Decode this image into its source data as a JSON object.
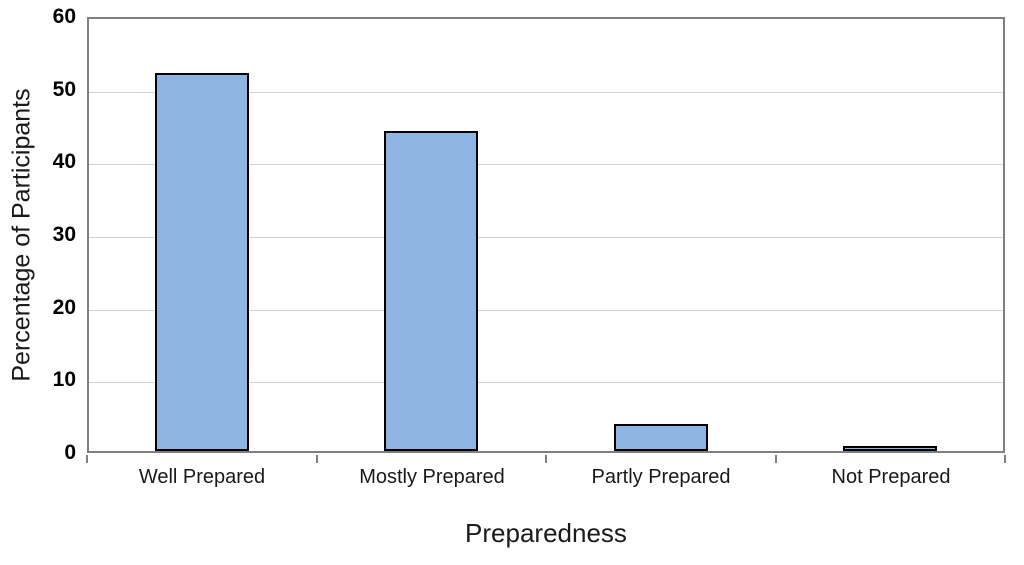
{
  "chart_data": {
    "type": "bar",
    "categories": [
      "Well Prepared",
      "Mostly Prepared",
      "Partly Prepared",
      "Not Prepared"
    ],
    "values": [
      52,
      44,
      3.7,
      0.5
    ],
    "title": "",
    "xlabel": "Preparedness",
    "ylabel": "Percentage of Participants",
    "ylim": [
      0,
      60
    ],
    "yticks": [
      0,
      10,
      20,
      30,
      40,
      50,
      60
    ],
    "grid": true,
    "legend": "none",
    "colors": {
      "bar_fill": "#8DB4E2",
      "bar_border": "#000000",
      "plot_border": "#7F7F7F",
      "gridline": "#D3D3D3",
      "text": "#1A1A1A"
    }
  }
}
